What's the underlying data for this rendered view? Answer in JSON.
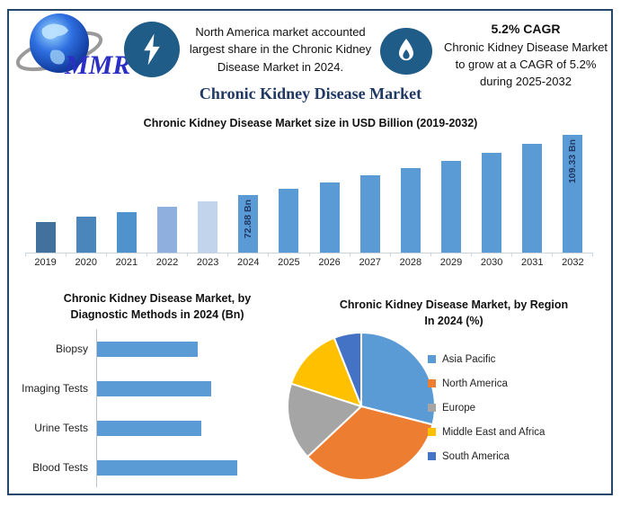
{
  "brand": {
    "logo_text": "MMR",
    "logo_text_color": "#2B2FC4",
    "globe_color": "#1A56C8",
    "swoosh_color": "#9A9A9A"
  },
  "header": {
    "left_callout": {
      "icon": "lightning-bolt",
      "text": "North America market accounted largest share in the Chronic Kidney Disease Market in 2024."
    },
    "right_callout": {
      "icon": "flame",
      "title": "5.2% CAGR",
      "text": "Chronic Kidney Disease Market to grow at a CAGR of 5.2% during 2025-2032"
    },
    "badge_color": "#1F5C87"
  },
  "main_title": "Chronic Kidney Disease Market",
  "theme": {
    "frame_border": "#24466B",
    "title_navy": "#1F3864",
    "axis_line": "#C9D3DD",
    "primary_bar_blue": "#5B9BD5"
  },
  "chart_data": [
    {
      "type": "bar",
      "title": "Chronic Kidney Disease Market size in USD Billion (2019-2032)",
      "categories": [
        "2019",
        "2020",
        "2021",
        "2022",
        "2023",
        "2024",
        "2025",
        "2026",
        "2027",
        "2028",
        "2029",
        "2030",
        "2031",
        "2032"
      ],
      "values": [
        56.7,
        59.6,
        62.7,
        65.9,
        69.3,
        72.88,
        76.67,
        80.66,
        84.85,
        89.26,
        93.9,
        98.79,
        103.92,
        109.33
      ],
      "data_labels": {
        "2024": "72.88 Bn",
        "2032": "109.33 Bn"
      },
      "bar_colors": {
        "2019": "#41719C",
        "2020": "#4A86BC",
        "2021": "#4F92CC",
        "2022": "#8FAFDF",
        "2023": "#C2D4EC",
        "default": "#5B9BD5"
      },
      "ylim": [
        38,
        115
      ],
      "xlabel": "",
      "ylabel": "USD Billion",
      "grid": false,
      "legend": false
    },
    {
      "type": "bar",
      "orientation": "horizontal",
      "title": "Chronic Kidney Disease Market, by Diagnostic Methods in 2024 (Bn)",
      "categories": [
        "Biopsy",
        "Imaging Tests",
        "Urine Tests",
        "Blood Tests"
      ],
      "values": [
        16.0,
        18.1,
        16.5,
        22.3
      ],
      "xlim": [
        0,
        24
      ],
      "bar_color": "#5B9BD5",
      "grid": false,
      "legend": false
    },
    {
      "type": "pie",
      "title": "Chronic Kidney Disease Market, by Region In 2024 (%)",
      "labels": [
        "Asia Pacific",
        "North America",
        "Europe",
        "Middle East and Africa",
        "South America"
      ],
      "values": [
        29,
        34,
        17,
        14,
        6
      ],
      "colors": [
        "#5B9BD5",
        "#ED7D31",
        "#A5A5A5",
        "#FFC000",
        "#4472C4"
      ],
      "start_angle_deg": 0,
      "direction": "clockwise",
      "legend_position": "right"
    }
  ]
}
